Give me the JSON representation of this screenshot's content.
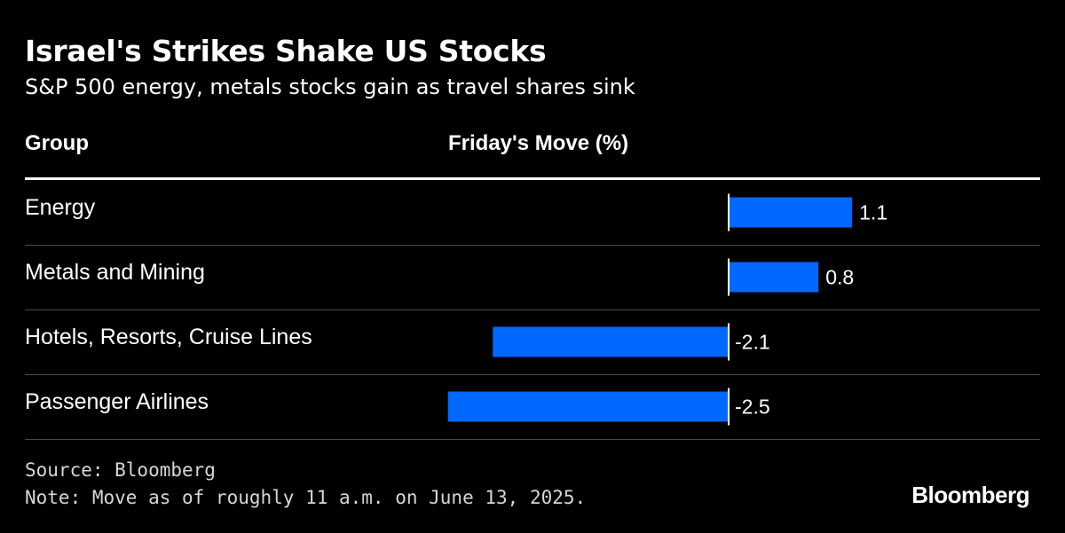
{
  "chart_data": {
    "type": "bar",
    "orientation": "horizontal",
    "title": "Israel's Strikes Shake US Stocks",
    "subtitle": "S&P 500 energy, metals stocks gain as travel shares sink",
    "columns": {
      "group": "Group",
      "move": "Friday's Move (%)"
    },
    "categories": [
      "Energy",
      "Metals and Mining",
      "Hotels, Resorts, Cruise Lines",
      "Passenger Airlines"
    ],
    "values": [
      1.1,
      0.8,
      -2.1,
      -2.5
    ],
    "value_labels": [
      "1.1",
      "0.8",
      "-2.1",
      "-2.5"
    ],
    "xlim": [
      -2.5,
      1.1
    ],
    "grid": false,
    "bar_color": "#0068ff"
  },
  "footer": {
    "source": "Source: Bloomberg",
    "note": "Note: Move as of roughly 11 a.m. on June 13, 2025.",
    "logo": "Bloomberg"
  }
}
